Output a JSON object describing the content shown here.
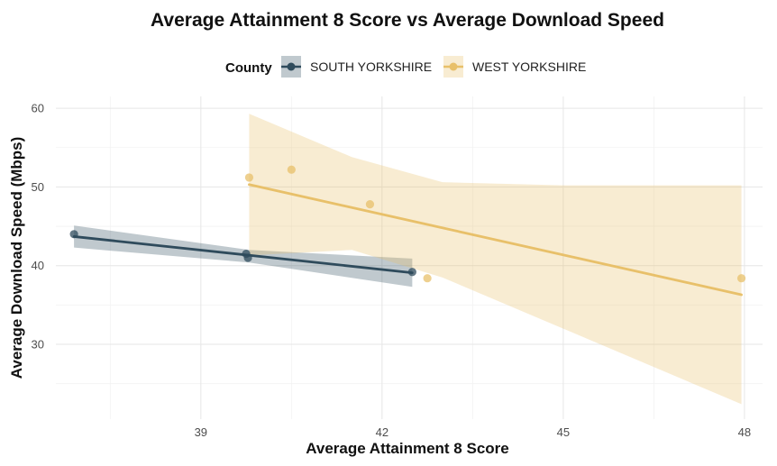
{
  "chart_data": {
    "type": "scatter",
    "title": "Average Attainment 8 Score vs Average Download Speed",
    "xlabel": "Average Attainment 8 Score",
    "ylabel": "Average Download Speed (Mbps)",
    "xlim": [
      36.6,
      48.3
    ],
    "ylim": [
      20.5,
      61.5
    ],
    "x_ticks": [
      39,
      42,
      45,
      48
    ],
    "y_ticks": [
      30,
      40,
      50,
      60
    ],
    "grid": true,
    "legend": {
      "title": "County",
      "placement": "top"
    },
    "series": [
      {
        "name": "SOUTH YORKSHIRE",
        "color": "#2f4b5c",
        "points": [
          {
            "x": 36.9,
            "y": 44.0
          },
          {
            "x": 39.75,
            "y": 41.5
          },
          {
            "x": 39.78,
            "y": 41.0
          },
          {
            "x": 42.5,
            "y": 39.2
          }
        ],
        "fit": {
          "x": [
            36.9,
            42.5
          ],
          "y": [
            43.7,
            39.1
          ]
        },
        "band": {
          "x": [
            36.9,
            39.8,
            42.5
          ],
          "lower": [
            42.3,
            40.4,
            37.3
          ],
          "upper": [
            45.1,
            42.0,
            40.9
          ]
        }
      },
      {
        "name": "WEST YORKSHIRE",
        "color": "#e8c06a",
        "points": [
          {
            "x": 39.8,
            "y": 51.2
          },
          {
            "x": 40.5,
            "y": 52.2
          },
          {
            "x": 41.8,
            "y": 47.8
          },
          {
            "x": 42.75,
            "y": 38.4
          },
          {
            "x": 47.95,
            "y": 38.4
          }
        ],
        "fit": {
          "x": [
            39.8,
            47.95
          ],
          "y": [
            50.3,
            36.3
          ]
        },
        "band": {
          "x": [
            39.8,
            41.5,
            43.0,
            45.0,
            47.95
          ],
          "lower": [
            41.3,
            42.0,
            38.5,
            32.0,
            22.4
          ],
          "upper": [
            59.3,
            53.8,
            50.6,
            50.2,
            50.2
          ]
        }
      }
    ]
  }
}
